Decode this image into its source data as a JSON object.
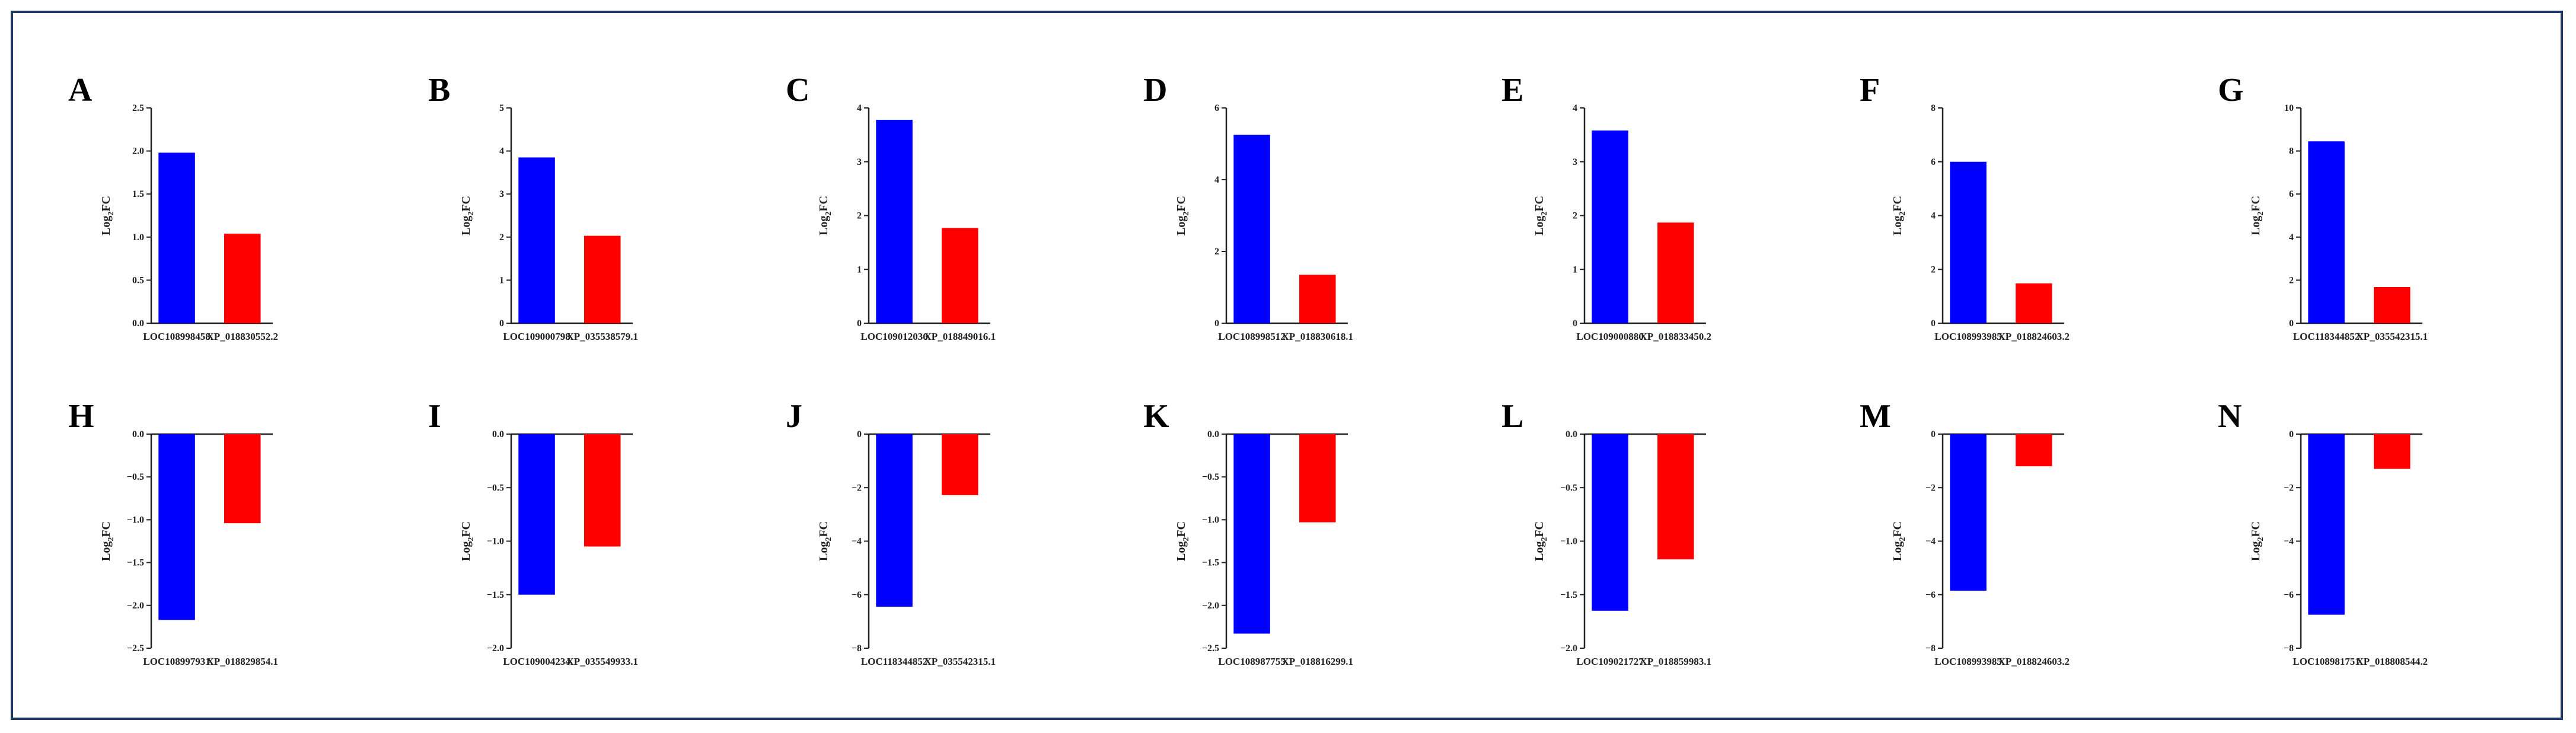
{
  "style": {
    "frame_color": "#1f3864",
    "bar_colors": [
      "#0000ff",
      "#ff0000"
    ],
    "axis_color": "#222222"
  },
  "chart_data": [
    {
      "type": "bar",
      "panel": "A",
      "ylabel": "Log2FC",
      "categories": [
        "LOC108998458",
        "XP_018830552.2"
      ],
      "values": [
        1.98,
        1.04
      ],
      "ylim": [
        0,
        2.5
      ],
      "yticks": [
        0,
        0.5,
        1.0,
        1.5,
        2.0,
        2.5
      ],
      "tick_labels": [
        "0.0",
        "0.5",
        "1.0",
        "1.5",
        "2.0",
        "2.5"
      ]
    },
    {
      "type": "bar",
      "panel": "B",
      "ylabel": "Log2FC",
      "categories": [
        "LOC109000798",
        "XP_035538579.1"
      ],
      "values": [
        3.85,
        2.03
      ],
      "ylim": [
        0,
        5
      ],
      "yticks": [
        0,
        1,
        2,
        3,
        4,
        5
      ],
      "tick_labels": [
        "0",
        "1",
        "2",
        "3",
        "4",
        "5"
      ]
    },
    {
      "type": "bar",
      "panel": "C",
      "ylabel": "Log2FC",
      "categories": [
        "LOC109012036",
        "XP_018849016.1"
      ],
      "values": [
        3.78,
        1.77
      ],
      "ylim": [
        0,
        4
      ],
      "yticks": [
        0,
        1,
        2,
        3,
        4
      ],
      "tick_labels": [
        "0",
        "1",
        "2",
        "3",
        "4"
      ]
    },
    {
      "type": "bar",
      "panel": "D",
      "ylabel": "Log2FC",
      "categories": [
        "LOC108998512",
        "XP_018830618.1"
      ],
      "values": [
        5.25,
        1.35
      ],
      "ylim": [
        0,
        6
      ],
      "yticks": [
        0,
        2,
        4,
        6
      ],
      "tick_labels": [
        "0",
        "2",
        "4",
        "6"
      ]
    },
    {
      "type": "bar",
      "panel": "E",
      "ylabel": "Log2FC",
      "categories": [
        "LOC109000880",
        "XP_018833450.2"
      ],
      "values": [
        3.58,
        1.87
      ],
      "ylim": [
        0,
        4
      ],
      "yticks": [
        0,
        1,
        2,
        3,
        4
      ],
      "tick_labels": [
        "0",
        "1",
        "2",
        "3",
        "4"
      ]
    },
    {
      "type": "bar",
      "panel": "F",
      "ylabel": "Log2FC",
      "categories": [
        "LOC108993985",
        "XP_018824603.2"
      ],
      "values": [
        6.0,
        1.48
      ],
      "ylim": [
        0,
        8
      ],
      "yticks": [
        0,
        2,
        4,
        6,
        8
      ],
      "tick_labels": [
        "0",
        "2",
        "4",
        "6",
        "8"
      ]
    },
    {
      "type": "bar",
      "panel": "G",
      "ylabel": "Log2FC",
      "categories": [
        "LOC118344852",
        "XP_035542315.1"
      ],
      "values": [
        8.45,
        1.68
      ],
      "ylim": [
        0,
        10
      ],
      "yticks": [
        0,
        2,
        4,
        6,
        8,
        10
      ],
      "tick_labels": [
        "0",
        "2",
        "4",
        "6",
        "8",
        "10"
      ]
    },
    {
      "type": "bar",
      "panel": "H",
      "ylabel": "Log2FC",
      "categories": [
        "LOC108997931",
        "XP_018829854.1"
      ],
      "values": [
        -2.17,
        -1.04
      ],
      "ylim": [
        -2.5,
        0
      ],
      "yticks": [
        0,
        -0.5,
        -1.0,
        -1.5,
        -2.0,
        -2.5
      ],
      "tick_labels": [
        "0.0",
        "−0.5",
        "−1.0",
        "−1.5",
        "−2.0",
        "−2.5"
      ]
    },
    {
      "type": "bar",
      "panel": "I",
      "ylabel": "Log2FC",
      "categories": [
        "LOC109004234",
        "XP_035549933.1"
      ],
      "values": [
        -1.5,
        -1.05
      ],
      "ylim": [
        -2,
        0
      ],
      "yticks": [
        0,
        -0.5,
        -1.0,
        -1.5,
        -2.0
      ],
      "tick_labels": [
        "0.0",
        "−0.5",
        "−1.0",
        "−1.5",
        "−2.0"
      ]
    },
    {
      "type": "bar",
      "panel": "J",
      "ylabel": "Log2FC",
      "categories": [
        "LOC118344852",
        "XP_035542315.1"
      ],
      "values": [
        -6.45,
        -2.28
      ],
      "ylim": [
        -8,
        0
      ],
      "yticks": [
        0,
        -2,
        -4,
        -6,
        -8
      ],
      "tick_labels": [
        "0",
        "−2",
        "−4",
        "−6",
        "−8"
      ]
    },
    {
      "type": "bar",
      "panel": "K",
      "ylabel": "Log2FC",
      "categories": [
        "LOC108987755",
        "XP_018816299.1"
      ],
      "values": [
        -2.33,
        -1.03
      ],
      "ylim": [
        -2.5,
        0
      ],
      "yticks": [
        0,
        -0.5,
        -1.0,
        -1.5,
        -2.0,
        -2.5
      ],
      "tick_labels": [
        "0.0",
        "−0.5",
        "−1.0",
        "−1.5",
        "−2.0",
        "−2.5"
      ]
    },
    {
      "type": "bar",
      "panel": "L",
      "ylabel": "Log2FC",
      "categories": [
        "LOC109021727",
        "XP_018859983.1"
      ],
      "values": [
        -1.65,
        -1.17
      ],
      "ylim": [
        -2,
        0
      ],
      "yticks": [
        0,
        -0.5,
        -1.0,
        -1.5,
        -2.0
      ],
      "tick_labels": [
        "0.0",
        "−0.5",
        "−1.0",
        "−1.5",
        "−2.0"
      ]
    },
    {
      "type": "bar",
      "panel": "M",
      "ylabel": "Log2FC",
      "categories": [
        "LOC108993985",
        "XP_018824603.2"
      ],
      "values": [
        -5.85,
        -1.2
      ],
      "ylim": [
        -8,
        0
      ],
      "yticks": [
        0,
        -2,
        -4,
        -6,
        -8
      ],
      "tick_labels": [
        "0",
        "−2",
        "−4",
        "−6",
        "−8"
      ]
    },
    {
      "type": "bar",
      "panel": "N",
      "ylabel": "Log2FC",
      "categories": [
        "LOC108981751",
        "XP_018808544.2"
      ],
      "values": [
        -6.75,
        -1.3
      ],
      "ylim": [
        -8,
        0
      ],
      "yticks": [
        0,
        -2,
        -4,
        -6,
        -8
      ],
      "tick_labels": [
        "0",
        "−2",
        "−4",
        "−6",
        "−8"
      ]
    }
  ]
}
